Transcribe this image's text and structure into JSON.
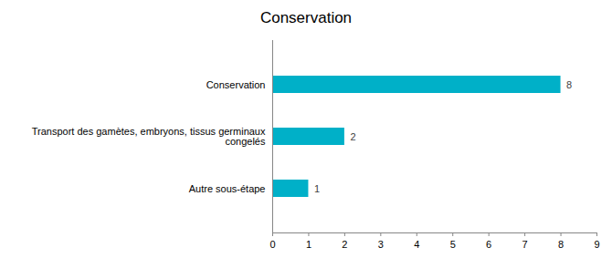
{
  "chart_data": {
    "type": "bar",
    "title": "Conservation",
    "orientation": "horizontal",
    "categories": [
      "Conservation",
      "Transport des gamètes, embryons, tissus germinaux congelés",
      "Autre sous-étape"
    ],
    "values": [
      8,
      2,
      1
    ],
    "color": "#00b0c8",
    "xlim": [
      0,
      9
    ],
    "xticks": [
      0,
      1,
      2,
      3,
      4,
      5,
      6,
      7,
      8,
      9
    ],
    "grid": false,
    "data_labels": true
  }
}
